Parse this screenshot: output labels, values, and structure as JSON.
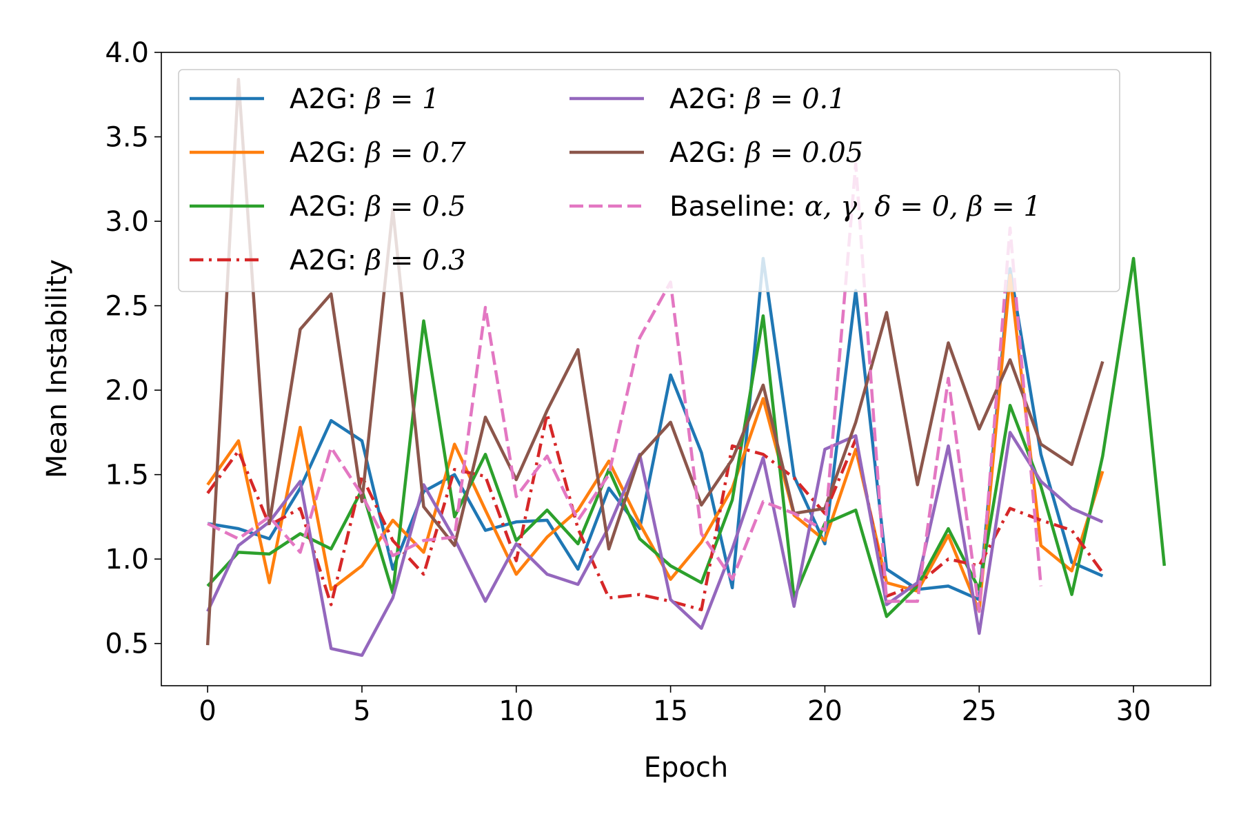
{
  "chart_data": {
    "type": "line",
    "title": "",
    "xlabel": "Epoch",
    "ylabel": "Mean Instability",
    "xlim": [
      -1.5,
      32.5
    ],
    "ylim": [
      0.25,
      4.0
    ],
    "xticks": [
      0,
      5,
      10,
      15,
      20,
      25,
      30
    ],
    "yticks": [
      0.5,
      1.0,
      1.5,
      2.0,
      2.5,
      3.0,
      3.5,
      4.0
    ],
    "xtick_labels": [
      "0",
      "5",
      "10",
      "15",
      "20",
      "25",
      "30"
    ],
    "ytick_labels": [
      "0.5",
      "1.0",
      "1.5",
      "2.0",
      "2.5",
      "3.0",
      "3.5",
      "4.0"
    ],
    "grid": false,
    "legend_position": "top-left",
    "legend_columns": 2,
    "series": [
      {
        "name": "A2G: β = 1",
        "label_prefix": "A2G: ",
        "label_math": "β = 1",
        "color": "#1f77b4",
        "dash": "solid",
        "values": [
          1.21,
          1.18,
          1.12,
          1.42,
          1.82,
          1.7,
          0.94,
          1.4,
          1.5,
          1.17,
          1.22,
          1.23,
          0.94,
          1.42,
          1.18,
          2.09,
          1.63,
          0.83,
          2.78,
          1.49,
          1.09,
          2.59,
          0.94,
          0.82,
          0.84,
          0.76,
          2.72,
          1.62,
          0.98,
          0.9
        ]
      },
      {
        "name": "A2G: β = 0.7",
        "label_prefix": "A2G: ",
        "label_math": "β = 0.7",
        "color": "#ff7f0e",
        "dash": "solid",
        "values": [
          1.44,
          1.7,
          0.86,
          1.78,
          0.82,
          0.96,
          1.23,
          1.04,
          1.68,
          1.29,
          0.91,
          1.13,
          1.29,
          1.58,
          1.21,
          0.88,
          1.1,
          1.42,
          1.95,
          1.26,
          1.11,
          1.65,
          0.86,
          0.81,
          1.14,
          0.69,
          2.68,
          1.08,
          0.93,
          1.52
        ]
      },
      {
        "name": "A2G: β = 0.5",
        "label_prefix": "A2G: ",
        "label_math": "β = 0.5",
        "color": "#2ca02c",
        "dash": "solid",
        "values": [
          0.84,
          1.04,
          1.03,
          1.15,
          1.06,
          1.41,
          0.8,
          2.41,
          1.25,
          1.62,
          1.11,
          1.29,
          1.09,
          1.53,
          1.12,
          0.96,
          0.86,
          1.35,
          2.44,
          0.77,
          1.21,
          1.29,
          0.66,
          0.84,
          1.18,
          0.82,
          1.91,
          1.43,
          0.79,
          1.61,
          2.78,
          0.96
        ]
      },
      {
        "name": "A2G: β = 0.3",
        "label_prefix": "A2G: ",
        "label_math": "β = 0.3",
        "color": "#d62728",
        "dash": "dashdot",
        "values": [
          1.39,
          1.64,
          1.2,
          1.3,
          0.73,
          1.49,
          1.11,
          0.91,
          1.53,
          1.49,
          0.99,
          1.86,
          1.18,
          0.77,
          0.79,
          0.75,
          0.7,
          1.67,
          1.62,
          1.48,
          1.27,
          1.71,
          0.78,
          0.85,
          1.0,
          0.96,
          1.3,
          1.23,
          1.17,
          0.92
        ]
      },
      {
        "name": "A2G: β = 0.1",
        "label_prefix": "A2G: ",
        "label_math": "β = 0.1",
        "color": "#9467bd",
        "dash": "solid",
        "values": [
          0.69,
          1.08,
          1.22,
          1.46,
          0.47,
          0.43,
          0.77,
          1.44,
          1.12,
          0.75,
          1.09,
          0.91,
          0.85,
          1.19,
          1.62,
          0.76,
          0.59,
          1.06,
          1.6,
          0.72,
          1.65,
          1.73,
          0.73,
          0.86,
          1.67,
          0.56,
          1.75,
          1.46,
          1.3,
          1.22
        ]
      },
      {
        "name": "A2G: β = 0.05",
        "label_prefix": "A2G: ",
        "label_math": "β = 0.05",
        "color": "#8c564b",
        "dash": "solid",
        "values": [
          0.49,
          3.84,
          1.21,
          2.36,
          2.57,
          1.34,
          3.07,
          1.31,
          1.08,
          1.84,
          1.47,
          1.88,
          2.24,
          1.06,
          1.61,
          1.81,
          1.32,
          1.59,
          2.03,
          1.27,
          1.3,
          1.81,
          2.46,
          1.44,
          2.28,
          1.77,
          2.18,
          1.68,
          1.56,
          2.17
        ]
      },
      {
        "name": "Baseline: α, γ, δ = 0, β = 1",
        "label_prefix": "Baseline: ",
        "label_math": "α, γ, δ = 0, β = 1",
        "color": "#e377c2",
        "dash": "dashed",
        "values": [
          1.21,
          1.12,
          1.25,
          1.04,
          1.66,
          1.38,
          1.02,
          1.11,
          1.13,
          2.49,
          1.37,
          1.61,
          1.23,
          1.5,
          2.31,
          2.64,
          1.15,
          0.88,
          1.34,
          1.27,
          1.17,
          3.34,
          0.75,
          0.75,
          2.07,
          0.69,
          2.96,
          0.84
        ]
      }
    ]
  }
}
